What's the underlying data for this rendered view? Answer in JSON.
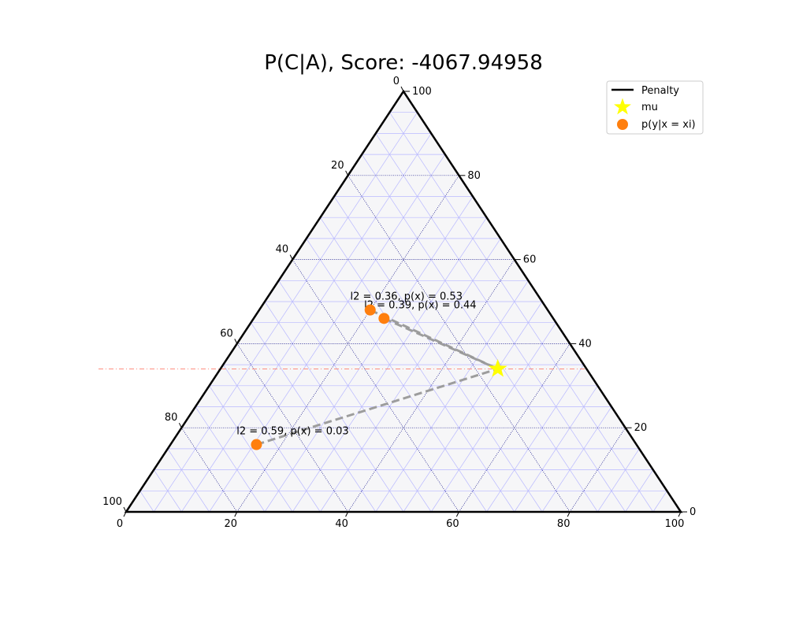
{
  "chart_data": {
    "type": "scatter",
    "subtype": "ternary",
    "title": "P(C|A), Score: -4067.94958",
    "scale": 100,
    "grid": true,
    "ticks": {
      "bottom": [
        "0",
        "20",
        "40",
        "60",
        "80",
        "100"
      ],
      "right": [
        "0",
        "20",
        "40",
        "60",
        "80",
        "100"
      ],
      "left": [
        "0",
        "20",
        "40",
        "60",
        "80",
        "100"
      ]
    },
    "legend": {
      "position": "top-right",
      "entries": [
        {
          "label": "Penalty",
          "marker": "line",
          "color": "#000000"
        },
        {
          "label": "mu",
          "marker": "star",
          "color": "#ffff00"
        },
        {
          "label": "p(y|x = xi)",
          "marker": "circle",
          "color": "#ff7f0e"
        }
      ]
    },
    "mu": {
      "bottom": 50,
      "right": 34,
      "left": 66
    },
    "points": [
      {
        "bottom": 23.5,
        "right": 46,
        "left": 76.5,
        "label": "l2 = 0.39, p(x) = 0.44"
      },
      {
        "bottom": 20,
        "right": 48,
        "left": 80,
        "label": "l2 = 0.36, p(x) = 0.53"
      },
      {
        "bottom": 15.5,
        "right": 16,
        "left": 84.5,
        "label": "l2 = 0.59, p(x) = 0.03"
      }
    ],
    "horizontal_reference": {
      "right": 34,
      "color": "#ff7f6e"
    },
    "colors": {
      "triangle_fill": "#f6f6f8",
      "fine_grid": "#b8b8ff",
      "major_grid": "#000080",
      "connector": "#999999",
      "point": "#ff7f0e",
      "mu": "#ffff00"
    }
  }
}
